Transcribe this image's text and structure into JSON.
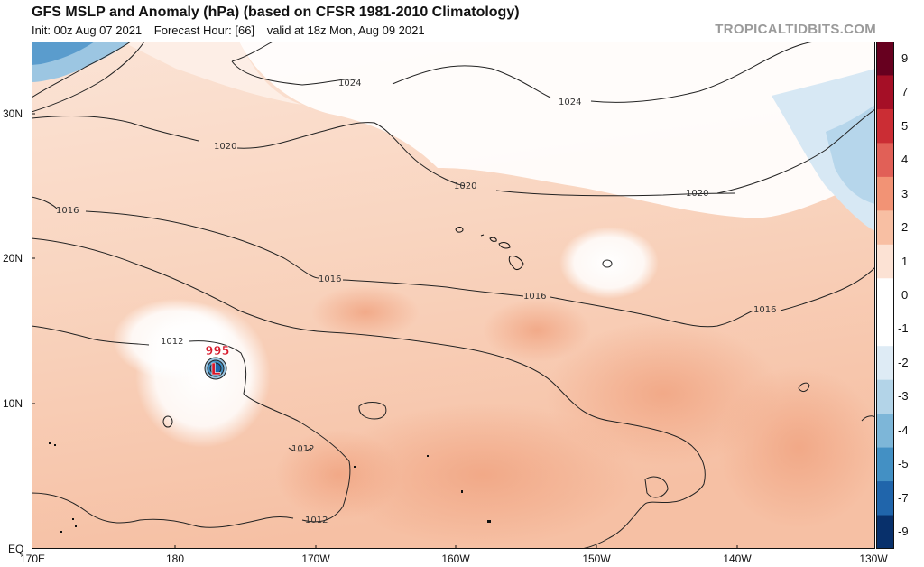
{
  "title": "GFS MSLP and Anomaly (hPa) (based on CFSR 1981-2010 Climatology)",
  "subtitle": {
    "init": "Init: 00z Aug 07 2021",
    "forecast_hour": "Forecast Hour: [66]",
    "valid": "valid at 18z Mon, Aug 09 2021"
  },
  "watermark": "TROPICALTIDBITS.COM",
  "axes": {
    "lat_labels": [
      "30N",
      "20N",
      "10N",
      "EQ"
    ],
    "lon_labels": [
      "170E",
      "180",
      "170W",
      "160W",
      "150W",
      "140W",
      "130W"
    ]
  },
  "isobar_labels": [
    "1024",
    "1024",
    "1020",
    "1020",
    "1020",
    "1016",
    "1016",
    "1016",
    "1016",
    "1012",
    "1012",
    "1012"
  ],
  "low_center": {
    "symbol": "L",
    "pressure": "995"
  },
  "colorbar": {
    "labels": [
      "9",
      "7",
      "5",
      "4",
      "3",
      "2",
      "1",
      "0",
      "-1",
      "-2",
      "-3",
      "-4",
      "-5",
      "-7",
      "-9"
    ],
    "colors": [
      "#67001f",
      "#a50f26",
      "#cb2d34",
      "#e16057",
      "#f29375",
      "#f8bfa3",
      "#fce2d4",
      "#ffffff",
      "#ffffff",
      "#deebf5",
      "#b3d4e8",
      "#7db6d8",
      "#4390c4",
      "#2065ab",
      "#08306b"
    ]
  }
}
